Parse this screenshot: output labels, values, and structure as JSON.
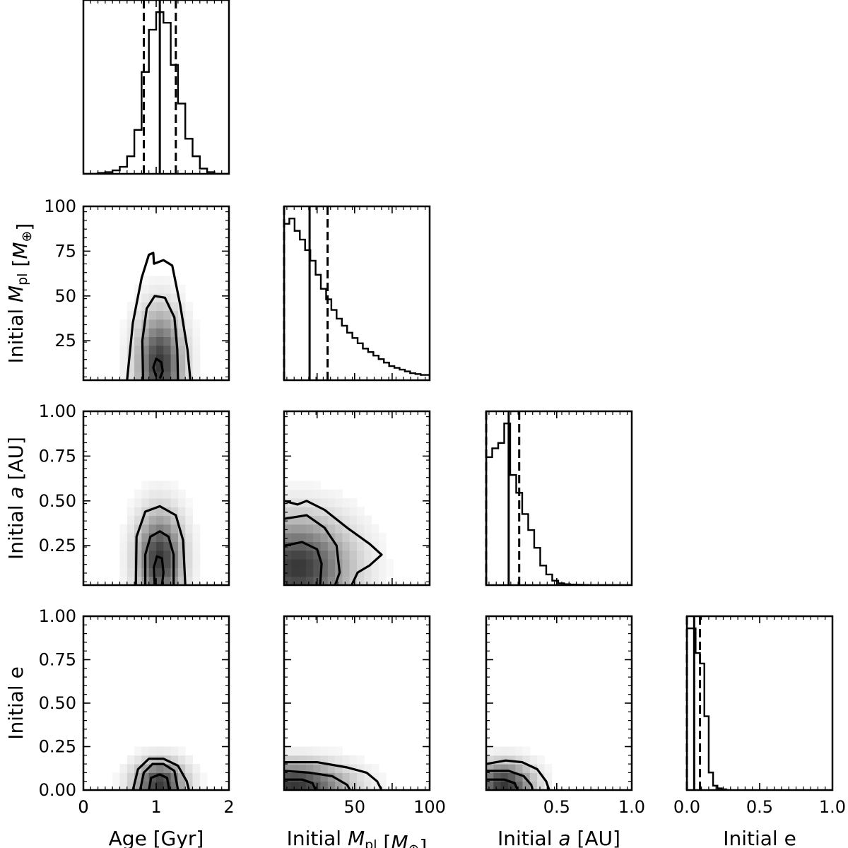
{
  "chart_data": {
    "type": "corner",
    "parameters": [
      {
        "key": "age",
        "label": "Age [Gyr]",
        "range": [
          0,
          2
        ],
        "ticks": [
          0,
          1,
          2
        ],
        "tick_labels": [
          "0",
          "1",
          "2"
        ],
        "median": 1.05,
        "interval": [
          0.83,
          1.27
        ],
        "hist_bins": [
          0.0,
          0.1,
          0.2,
          0.3,
          0.4,
          0.5,
          0.6,
          0.7,
          0.8,
          0.9,
          1.0,
          1.1,
          1.2,
          1.3,
          1.4,
          1.5,
          1.6,
          1.7,
          1.8,
          1.9,
          2.0
        ],
        "hist_values": [
          0,
          0,
          0.005,
          0.01,
          0.02,
          0.04,
          0.1,
          0.25,
          0.58,
          0.82,
          0.92,
          0.86,
          0.62,
          0.4,
          0.2,
          0.1,
          0.03,
          0.01,
          0,
          0
        ]
      },
      {
        "key": "mpl",
        "label": "Initial M_pl [M_⊕]",
        "label_parts": [
          [
            "Initial ",
            ""
          ],
          [
            "M",
            "it"
          ],
          [
            "pl",
            "sub"
          ],
          [
            " [",
            ""
          ],
          [
            "M",
            "it"
          ],
          [
            "⊕",
            "sub"
          ],
          [
            "]",
            ""
          ]
        ],
        "range": [
          3,
          100
        ],
        "ticks": [
          25,
          50,
          75,
          100
        ],
        "tick_labels": [
          "25",
          "50",
          "75",
          "100"
        ],
        "median": 20,
        "interval": [
          3,
          32
        ],
        "hist_bins": [
          3,
          6.5,
          10,
          13.5,
          17,
          20.5,
          24,
          27.5,
          31,
          34.5,
          38,
          41.5,
          45,
          48.5,
          52,
          55.5,
          59,
          62.5,
          66,
          69.5,
          73,
          76.5,
          80,
          83.5,
          87,
          90.5,
          94,
          97.5,
          100
        ],
        "hist_values": [
          0.89,
          0.92,
          0.85,
          0.8,
          0.74,
          0.68,
          0.6,
          0.52,
          0.46,
          0.4,
          0.35,
          0.31,
          0.27,
          0.24,
          0.21,
          0.18,
          0.16,
          0.14,
          0.12,
          0.1,
          0.08,
          0.07,
          0.06,
          0.05,
          0.04,
          0.035,
          0.03,
          0.03
        ]
      },
      {
        "key": "a",
        "label": "Initial a [AU]",
        "label_parts": [
          [
            "Initial ",
            ""
          ],
          [
            "a",
            "it"
          ],
          [
            " [AU]",
            ""
          ]
        ],
        "range": [
          0.03,
          1.0
        ],
        "ticks": [
          0.25,
          0.5,
          0.75,
          1.0
        ],
        "tick_labels": [
          "0.25",
          "0.50",
          "0.75",
          "1.00"
        ],
        "bottom_ticks": [
          0.5,
          1.0
        ],
        "bottom_tick_labels": [
          "0.5",
          "1.0"
        ],
        "median": 0.18,
        "interval": [
          0.03,
          0.25
        ],
        "hist_bins": [
          0.03,
          0.07,
          0.11,
          0.15,
          0.19,
          0.23,
          0.27,
          0.31,
          0.35,
          0.39,
          0.43,
          0.47,
          0.51,
          0.55,
          0.59,
          0.63,
          0.67,
          0.71,
          0.75,
          0.79,
          0.83,
          0.87,
          0.91,
          0.95,
          1.0
        ],
        "hist_values": [
          0.72,
          0.77,
          0.8,
          0.91,
          0.62,
          0.52,
          0.4,
          0.31,
          0.21,
          0.11,
          0.06,
          0.025,
          0.01,
          0.005,
          0.003,
          0.002,
          0.001,
          0,
          0,
          0,
          0,
          0,
          0,
          0
        ]
      },
      {
        "key": "e",
        "label": "Initial e",
        "range": [
          0,
          1.0
        ],
        "ticks": [
          0.0,
          0.25,
          0.5,
          0.75,
          1.0
        ],
        "tick_labels": [
          "0.00",
          "0.25",
          "0.50",
          "0.75",
          "1.00"
        ],
        "bottom_ticks": [
          0.0,
          0.5,
          1.0
        ],
        "bottom_tick_labels": [
          "0.0",
          "0.5",
          "1.0"
        ],
        "median": 0.05,
        "interval": [
          0.0,
          0.09
        ],
        "hist_bins": [
          0.0,
          0.03,
          0.06,
          0.09,
          0.12,
          0.15,
          0.18,
          0.21,
          0.24,
          0.27,
          0.3
        ],
        "hist_values": [
          0.92,
          0.92,
          0.78,
          0.72,
          0.42,
          0.1,
          0.025,
          0.01,
          0.004,
          0,
          0
        ]
      }
    ],
    "density_panels": [
      {
        "row": 1,
        "col": 0,
        "center": [
          1.05,
          12
        ],
        "spread": [
          0.2,
          18
        ],
        "contours": [
          {
            "level": "inner",
            "points": [
              [
                1.0,
                5
              ],
              [
                0.96,
                10
              ],
              [
                1.0,
                15
              ],
              [
                1.07,
                13
              ],
              [
                1.09,
                8
              ],
              [
                1.05,
                4
              ]
            ]
          },
          {
            "level": "mid",
            "points": [
              [
                0.82,
                3
              ],
              [
                0.81,
                25
              ],
              [
                0.87,
                43
              ],
              [
                0.98,
                50
              ],
              [
                1.12,
                49
              ],
              [
                1.25,
                38
              ],
              [
                1.29,
                20
              ],
              [
                1.3,
                3
              ]
            ]
          },
          {
            "level": "outer",
            "points": [
              [
                0.6,
                3
              ],
              [
                0.68,
                35
              ],
              [
                0.8,
                60
              ],
              [
                0.9,
                73
              ],
              [
                0.96,
                74
              ],
              [
                0.97,
                68
              ],
              [
                1.1,
                70
              ],
              [
                1.22,
                67
              ],
              [
                1.33,
                45
              ],
              [
                1.43,
                20
              ],
              [
                1.47,
                3
              ]
            ]
          }
        ]
      },
      {
        "row": 2,
        "col": 0,
        "center": [
          1.05,
          0.18
        ],
        "spread": [
          0.2,
          0.16
        ],
        "contours": [
          {
            "level": "inner",
            "points": [
              [
                0.98,
                0.03
              ],
              [
                0.97,
                0.13
              ],
              [
                1.01,
                0.19
              ],
              [
                1.08,
                0.18
              ],
              [
                1.1,
                0.1
              ],
              [
                1.08,
                0.03
              ]
            ]
          },
          {
            "level": "mid",
            "points": [
              [
                0.85,
                0.03
              ],
              [
                0.85,
                0.2
              ],
              [
                0.92,
                0.3
              ],
              [
                1.05,
                0.33
              ],
              [
                1.17,
                0.3
              ],
              [
                1.24,
                0.2
              ],
              [
                1.24,
                0.03
              ]
            ]
          },
          {
            "level": "outer",
            "points": [
              [
                0.72,
                0.03
              ],
              [
                0.73,
                0.3
              ],
              [
                0.85,
                0.44
              ],
              [
                1.05,
                0.47
              ],
              [
                1.27,
                0.42
              ],
              [
                1.37,
                0.28
              ],
              [
                1.4,
                0.03
              ]
            ]
          }
        ]
      },
      {
        "row": 2,
        "col": 1,
        "center": [
          12,
          0.13
        ],
        "spread": [
          22,
          0.17
        ],
        "contours": [
          {
            "level": "inner",
            "points": [
              [
                3,
                0.25
              ],
              [
                15,
                0.27
              ],
              [
                25,
                0.23
              ],
              [
                28,
                0.15
              ],
              [
                27,
                0.03
              ]
            ]
          },
          {
            "level": "mid",
            "points": [
              [
                3,
                0.4
              ],
              [
                18,
                0.42
              ],
              [
                30,
                0.35
              ],
              [
                38,
                0.25
              ],
              [
                40,
                0.1
              ],
              [
                37,
                0.03
              ]
            ]
          },
          {
            "level": "outer",
            "points": [
              [
                3,
                0.5
              ],
              [
                12,
                0.48
              ],
              [
                18,
                0.5
              ],
              [
                30,
                0.45
              ],
              [
                45,
                0.35
              ],
              [
                60,
                0.26
              ],
              [
                68,
                0.2
              ],
              [
                60,
                0.14
              ],
              [
                52,
                0.1
              ],
              [
                48,
                0.03
              ]
            ]
          }
        ]
      },
      {
        "row": 3,
        "col": 0,
        "center": [
          1.05,
          0.04
        ],
        "spread": [
          0.22,
          0.08
        ],
        "contours": [
          {
            "level": "inner",
            "points": [
              [
                0.9,
                0
              ],
              [
                0.93,
                0.07
              ],
              [
                1.05,
                0.09
              ],
              [
                1.15,
                0.07
              ],
              [
                1.18,
                0
              ]
            ]
          },
          {
            "level": "mid",
            "points": [
              [
                0.78,
                0
              ],
              [
                0.83,
                0.1
              ],
              [
                0.95,
                0.15
              ],
              [
                1.1,
                0.15
              ],
              [
                1.25,
                0.11
              ],
              [
                1.3,
                0
              ]
            ]
          },
          {
            "level": "outer",
            "points": [
              [
                0.68,
                0
              ],
              [
                0.75,
                0.12
              ],
              [
                0.9,
                0.18
              ],
              [
                1.1,
                0.18
              ],
              [
                1.3,
                0.14
              ],
              [
                1.42,
                0.05
              ],
              [
                1.45,
                0
              ]
            ]
          }
        ]
      },
      {
        "row": 3,
        "col": 1,
        "center": [
          10,
          0.03
        ],
        "spread": [
          22,
          0.08
        ],
        "contours": [
          {
            "level": "inner",
            "points": [
              [
                3,
                0.06
              ],
              [
                15,
                0.06
              ],
              [
                22,
                0.04
              ],
              [
                24,
                0
              ]
            ]
          },
          {
            "level": "mid",
            "points": [
              [
                3,
                0.11
              ],
              [
                20,
                0.1
              ],
              [
                35,
                0.08
              ],
              [
                45,
                0.03
              ],
              [
                47,
                0
              ]
            ]
          },
          {
            "level": "outer",
            "points": [
              [
                3,
                0.16
              ],
              [
                25,
                0.16
              ],
              [
                45,
                0.13
              ],
              [
                58,
                0.1
              ],
              [
                65,
                0.05
              ],
              [
                68,
                0
              ]
            ]
          }
        ]
      },
      {
        "row": 3,
        "col": 2,
        "center": [
          0.15,
          0.03
        ],
        "spread": [
          0.12,
          0.08
        ],
        "contours": [
          {
            "level": "inner",
            "points": [
              [
                0.03,
                0.06
              ],
              [
                0.15,
                0.06
              ],
              [
                0.22,
                0.04
              ],
              [
                0.24,
                0
              ]
            ]
          },
          {
            "level": "mid",
            "points": [
              [
                0.03,
                0.11
              ],
              [
                0.18,
                0.11
              ],
              [
                0.28,
                0.08
              ],
              [
                0.33,
                0.03
              ],
              [
                0.34,
                0
              ]
            ]
          },
          {
            "level": "outer",
            "points": [
              [
                0.03,
                0.15
              ],
              [
                0.16,
                0.17
              ],
              [
                0.27,
                0.16
              ],
              [
                0.37,
                0.12
              ],
              [
                0.43,
                0.05
              ],
              [
                0.45,
                0
              ]
            ]
          }
        ]
      }
    ],
    "title": "",
    "grid": false
  }
}
